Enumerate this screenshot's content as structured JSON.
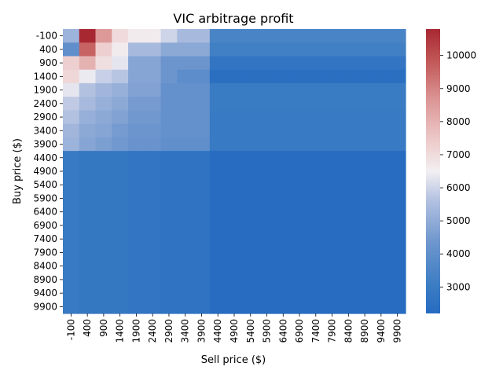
{
  "chart_data": {
    "type": "heatmap",
    "title": "VIC arbitrage profit",
    "xlabel": "Sell price ($)",
    "ylabel": "Buy price ($)",
    "x_categories": [
      "-100",
      "400",
      "900",
      "1400",
      "1900",
      "2400",
      "2900",
      "3400",
      "3900",
      "4400",
      "4900",
      "5400",
      "5900",
      "6400",
      "6900",
      "7400",
      "7900",
      "8400",
      "8900",
      "9400",
      "9900"
    ],
    "y_categories": [
      "-100",
      "400",
      "900",
      "1400",
      "1900",
      "2400",
      "2900",
      "3400",
      "3900",
      "4400",
      "4900",
      "5400",
      "5900",
      "6400",
      "6900",
      "7400",
      "7900",
      "8400",
      "8900",
      "9400",
      "9900"
    ],
    "colorbar": {
      "min": 2200,
      "max": 10800,
      "ticks": [
        3000,
        4000,
        5000,
        6000,
        7000,
        8000,
        9000,
        10000
      ],
      "colormap": "vlag (blue-white-red)"
    },
    "values": [
      [
        5200,
        10800,
        8600,
        7000,
        6600,
        6600,
        6000,
        5400,
        5400,
        3400,
        3400,
        3400,
        3400,
        3400,
        3400,
        3400,
        3400,
        3400,
        3400,
        3400,
        3400
      ],
      [
        4000,
        9600,
        7300,
        6600,
        5400,
        5400,
        4900,
        4900,
        4900,
        3200,
        3200,
        3200,
        3200,
        3200,
        3200,
        3200,
        3200,
        3200,
        3200,
        3200,
        3200
      ],
      [
        7300,
        8000,
        6900,
        6300,
        4800,
        4800,
        4300,
        4300,
        4300,
        2700,
        2700,
        2700,
        2700,
        2700,
        2700,
        2700,
        2700,
        2700,
        2700,
        2700,
        2700
      ],
      [
        7100,
        6400,
        5900,
        5700,
        4800,
        4800,
        4300,
        3900,
        3900,
        2400,
        2400,
        2400,
        2400,
        2400,
        2400,
        2400,
        2400,
        2400,
        2400,
        2400,
        2400
      ],
      [
        6300,
        5600,
        5300,
        5100,
        4700,
        4700,
        4100,
        4100,
        4100,
        3000,
        3000,
        3000,
        3000,
        3000,
        3000,
        3000,
        3000,
        3000,
        3000,
        3000,
        3000
      ],
      [
        5800,
        5400,
        5100,
        4900,
        4500,
        4500,
        4100,
        4100,
        4100,
        3000,
        3000,
        3000,
        3000,
        3000,
        3000,
        3000,
        3000,
        3000,
        3000,
        3000,
        3000
      ],
      [
        5600,
        5100,
        4900,
        4700,
        4400,
        4400,
        4100,
        4100,
        4100,
        2900,
        2900,
        2900,
        2900,
        2900,
        2900,
        2900,
        2900,
        2900,
        2900,
        2900,
        2900
      ],
      [
        5300,
        4900,
        4800,
        4500,
        4300,
        4300,
        4100,
        4100,
        4100,
        2900,
        2900,
        2900,
        2900,
        2900,
        2900,
        2900,
        2900,
        2900,
        2900,
        2900,
        2900
      ],
      [
        5200,
        4800,
        4600,
        4400,
        4200,
        4200,
        4000,
        4000,
        4000,
        2900,
        2900,
        2900,
        2900,
        2900,
        2900,
        2900,
        2900,
        2900,
        2900,
        2900,
        2900
      ],
      [
        2900,
        2800,
        2800,
        2800,
        2700,
        2700,
        2600,
        2600,
        2600,
        2250,
        2250,
        2250,
        2250,
        2250,
        2250,
        2250,
        2250,
        2250,
        2250,
        2250,
        2250
      ],
      [
        2900,
        2800,
        2800,
        2800,
        2700,
        2700,
        2600,
        2600,
        2600,
        2250,
        2250,
        2250,
        2250,
        2250,
        2250,
        2250,
        2250,
        2250,
        2250,
        2250,
        2250
      ],
      [
        2900,
        2800,
        2800,
        2800,
        2700,
        2700,
        2600,
        2600,
        2600,
        2250,
        2250,
        2250,
        2250,
        2250,
        2250,
        2250,
        2250,
        2250,
        2250,
        2250,
        2250
      ],
      [
        2900,
        2800,
        2800,
        2800,
        2700,
        2700,
        2600,
        2600,
        2600,
        2250,
        2250,
        2250,
        2250,
        2250,
        2250,
        2250,
        2250,
        2250,
        2250,
        2250,
        2250
      ],
      [
        2900,
        2800,
        2800,
        2800,
        2700,
        2700,
        2600,
        2600,
        2600,
        2250,
        2250,
        2250,
        2250,
        2250,
        2250,
        2250,
        2250,
        2250,
        2250,
        2250,
        2250
      ],
      [
        2900,
        2800,
        2800,
        2800,
        2700,
        2700,
        2600,
        2600,
        2600,
        2250,
        2250,
        2250,
        2250,
        2250,
        2250,
        2250,
        2250,
        2250,
        2250,
        2250,
        2250
      ],
      [
        2900,
        2800,
        2800,
        2800,
        2700,
        2700,
        2600,
        2600,
        2600,
        2250,
        2250,
        2250,
        2250,
        2250,
        2250,
        2250,
        2250,
        2250,
        2250,
        2250,
        2250
      ],
      [
        2900,
        2800,
        2800,
        2800,
        2700,
        2700,
        2600,
        2600,
        2600,
        2250,
        2250,
        2250,
        2250,
        2250,
        2250,
        2250,
        2250,
        2250,
        2250,
        2250,
        2250
      ],
      [
        2900,
        2800,
        2800,
        2800,
        2700,
        2700,
        2600,
        2600,
        2600,
        2250,
        2250,
        2250,
        2250,
        2250,
        2250,
        2250,
        2250,
        2250,
        2250,
        2250,
        2250
      ],
      [
        2900,
        2800,
        2800,
        2800,
        2700,
        2700,
        2600,
        2600,
        2600,
        2250,
        2250,
        2250,
        2250,
        2250,
        2250,
        2250,
        2250,
        2250,
        2250,
        2250,
        2250
      ],
      [
        2900,
        2800,
        2800,
        2800,
        2700,
        2700,
        2600,
        2600,
        2600,
        2250,
        2250,
        2250,
        2250,
        2250,
        2250,
        2250,
        2250,
        2250,
        2250,
        2250,
        2250
      ],
      [
        2900,
        2800,
        2800,
        2800,
        2700,
        2700,
        2600,
        2600,
        2600,
        2250,
        2250,
        2250,
        2250,
        2250,
        2250,
        2250,
        2250,
        2250,
        2250,
        2250,
        2250
      ]
    ]
  }
}
